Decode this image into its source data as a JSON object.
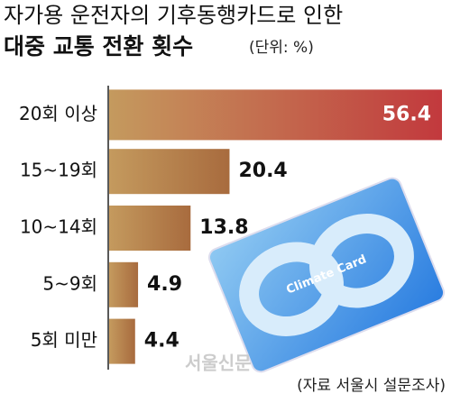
{
  "chart_data": {
    "type": "bar",
    "orientation": "horizontal",
    "title": "자가용 운전자의 기후동행카드로 인한",
    "subtitle": "대중 교통 전환 횟수",
    "unit": "(단위: %)",
    "categories": [
      "20회 이상",
      "15~19회",
      "10~14회",
      "5~9회",
      "5회 미만"
    ],
    "values": [
      56.4,
      20.4,
      13.8,
      4.9,
      4.4
    ],
    "colors": [
      "#c2393d",
      "#a86b3e",
      "#a86b3e",
      "#a86b3e",
      "#a86b3e"
    ],
    "base_color": "#c49a5e",
    "source": "(자료 서울시 설문조사)",
    "card_text": "Climate Card",
    "watermark": "서울신문"
  }
}
